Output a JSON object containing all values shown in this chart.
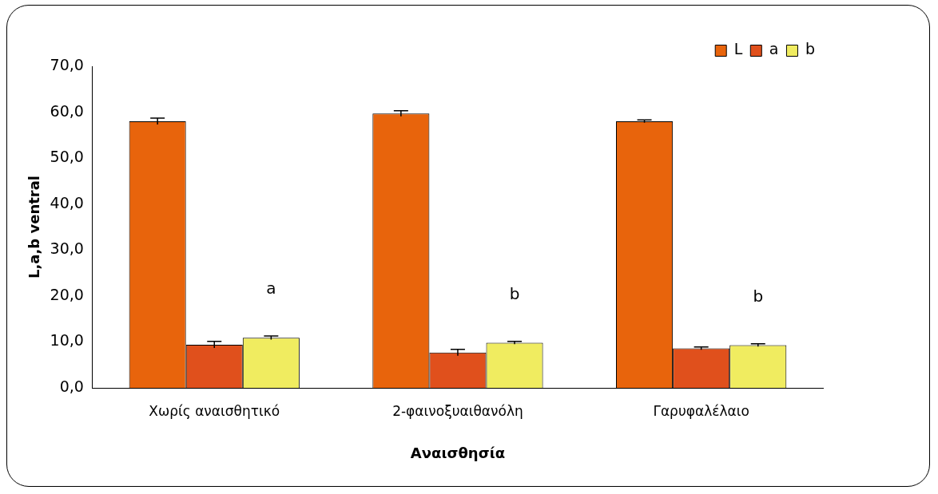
{
  "chart_data": {
    "type": "bar",
    "xlabel": "Αναισθησία",
    "ylabel": "L,a,b ventral",
    "categories": [
      "Χωρίς αναισθητικό",
      "2-φαινοξυαιθανόλη",
      "Γαρυφαλέλαιο"
    ],
    "series": [
      {
        "name": "L",
        "color": "#e8640c",
        "values": [
          58.0,
          59.7,
          58.0
        ],
        "errors": [
          0.7,
          0.6,
          0.3
        ]
      },
      {
        "name": "a",
        "color": "#e0501c",
        "values": [
          9.4,
          7.7,
          8.6
        ],
        "errors": [
          0.7,
          0.7,
          0.3
        ]
      },
      {
        "name": "b",
        "color": "#f0ec60",
        "values": [
          10.9,
          9.8,
          9.3
        ],
        "errors": [
          0.4,
          0.3,
          0.3
        ]
      }
    ],
    "ylim": [
      0,
      70
    ],
    "yticks": [
      {
        "value": 0,
        "label": "0,0"
      },
      {
        "value": 10,
        "label": "10,0"
      },
      {
        "value": 20,
        "label": "20,0"
      },
      {
        "value": 30,
        "label": "30,0"
      },
      {
        "value": 40,
        "label": "40,0"
      },
      {
        "value": 50,
        "label": "50,0"
      },
      {
        "value": 60,
        "label": "60,0"
      },
      {
        "value": 70,
        "label": "70,0"
      }
    ],
    "annotations": [
      "a",
      "b",
      "b"
    ],
    "grid": false,
    "legend": "top right"
  }
}
